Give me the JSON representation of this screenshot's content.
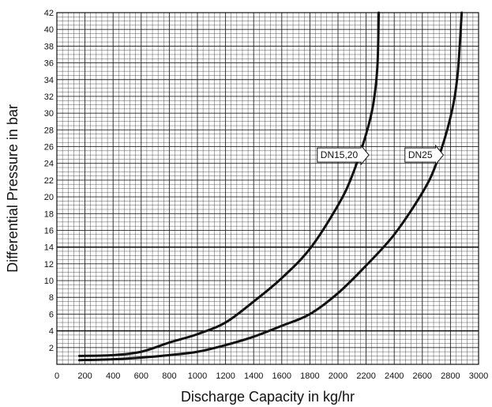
{
  "chart_data": {
    "type": "line",
    "title": "",
    "xlabel": "Discharge Capacity in kg/hr",
    "ylabel": "Differential Pressure in bar",
    "xlim": [
      0,
      3000
    ],
    "ylim": [
      0,
      42
    ],
    "x_ticks": [
      0,
      200,
      400,
      600,
      800,
      1000,
      1200,
      1400,
      1600,
      1800,
      2000,
      2200,
      2400,
      2600,
      2800,
      3000
    ],
    "y_ticks": [
      2,
      4,
      6,
      8,
      10,
      12,
      14,
      16,
      18,
      20,
      22,
      24,
      26,
      28,
      30,
      32,
      34,
      36,
      38,
      40,
      42
    ],
    "grid": true,
    "minor_grid_step_x": 40,
    "minor_grid_step_y": 0.5,
    "legend": "none",
    "series": [
      {
        "name": "DN15,20",
        "points": [
          [
            160,
            1.0
          ],
          [
            400,
            1.1
          ],
          [
            600,
            1.5
          ],
          [
            800,
            2.6
          ],
          [
            1000,
            3.6
          ],
          [
            1200,
            5.0
          ],
          [
            1400,
            7.5
          ],
          [
            1600,
            10.3
          ],
          [
            1800,
            13.8
          ],
          [
            2000,
            19.0
          ],
          [
            2100,
            22.5
          ],
          [
            2200,
            27.5
          ],
          [
            2250,
            31.0
          ],
          [
            2280,
            35.5
          ],
          [
            2290,
            42.0
          ]
        ]
      },
      {
        "name": "DN25",
        "points": [
          [
            160,
            0.5
          ],
          [
            400,
            0.6
          ],
          [
            600,
            0.8
          ],
          [
            800,
            1.1
          ],
          [
            1000,
            1.5
          ],
          [
            1200,
            2.3
          ],
          [
            1400,
            3.3
          ],
          [
            1600,
            4.6
          ],
          [
            1800,
            6.0
          ],
          [
            2000,
            8.5
          ],
          [
            2200,
            11.8
          ],
          [
            2400,
            15.5
          ],
          [
            2600,
            20.5
          ],
          [
            2700,
            24.0
          ],
          [
            2800,
            29.5
          ],
          [
            2850,
            34.5
          ],
          [
            2880,
            42.0
          ]
        ]
      }
    ],
    "annotations": [
      {
        "text": "DN15,20",
        "x": 2220,
        "y": 25
      },
      {
        "text": "DN25",
        "x": 2750,
        "y": 25
      }
    ]
  }
}
